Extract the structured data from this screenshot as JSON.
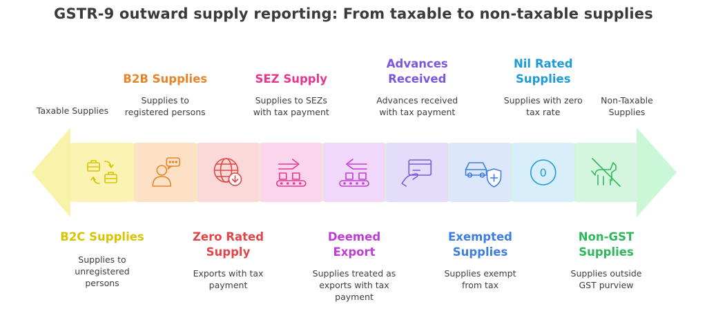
{
  "title": "GSTR-9 outward supply reporting: From taxable to non-taxable supplies",
  "ends": {
    "left": "Taxable Supplies",
    "right_line1": "Non-Taxable",
    "right_line2": "Supplies"
  },
  "top": [
    {
      "heading": [
        "B2B Supplies"
      ],
      "desc": [
        "Supplies to",
        "registered persons"
      ],
      "color": "#e8852a"
    },
    {
      "heading": [
        "SEZ Supply"
      ],
      "desc": [
        "Supplies to SEZs",
        "with tax payment"
      ],
      "color": "#e8368f"
    },
    {
      "heading": [
        "Advances",
        "Received"
      ],
      "desc": [
        "Advances received",
        "with tax payment"
      ],
      "color": "#7b57e0"
    },
    {
      "heading": [
        "Nil Rated",
        "Supplies"
      ],
      "desc": [
        "Supplies with zero",
        "tax rate"
      ],
      "color": "#1e9bd6"
    }
  ],
  "bottom": [
    {
      "heading": [
        "B2C Supplies"
      ],
      "desc": [
        "Supplies to",
        "unregistered",
        "persons"
      ],
      "color": "#d8c400"
    },
    {
      "heading": [
        "Zero Rated",
        "Supply"
      ],
      "desc": [
        "Exports with tax",
        "payment"
      ],
      "color": "#e04646"
    },
    {
      "heading": [
        "Deemed",
        "Export"
      ],
      "desc": [
        "Supplies treated as",
        "exports with tax",
        "payment"
      ],
      "color": "#c03cd6"
    },
    {
      "heading": [
        "Exempted",
        "Supplies"
      ],
      "desc": [
        "Supplies exempt",
        "from tax"
      ],
      "color": "#3d7ee0"
    },
    {
      "heading": [
        "Non-GST",
        "Supplies"
      ],
      "desc": [
        "Supplies outside",
        "GST purview"
      ],
      "color": "#2fb85a"
    }
  ],
  "segments": [
    {
      "name": "b2c",
      "icon": "briefcase-exchange-icon",
      "fill": "#fbf3b4",
      "stroke": "#d8c400"
    },
    {
      "name": "b2b",
      "icon": "person-chat-icon",
      "fill": "#fde0c6",
      "stroke": "#e8852a"
    },
    {
      "name": "zero-rated",
      "icon": "globe-download-icon",
      "fill": "#fcd9d9",
      "stroke": "#e04646"
    },
    {
      "name": "sez",
      "icon": "conveyor-right-icon",
      "fill": "#fbd5ec",
      "stroke": "#e8368f"
    },
    {
      "name": "deemed-export",
      "icon": "conveyor-left-icon",
      "fill": "#f1d8fb",
      "stroke": "#c03cd6"
    },
    {
      "name": "advances",
      "icon": "hand-card-icon",
      "fill": "#e3dcfb",
      "stroke": "#7b57e0"
    },
    {
      "name": "exempted",
      "icon": "car-shield-icon",
      "fill": "#dce7fb",
      "stroke": "#3d7ee0"
    },
    {
      "name": "nil-rated",
      "icon": "zero-circle-icon",
      "fill": "#d8eefb",
      "stroke": "#1e9bd6"
    },
    {
      "name": "non-gst",
      "icon": "no-dog-icon",
      "fill": "#d4f5de",
      "stroke": "#2fb85a"
    }
  ],
  "zero_glyph": "0",
  "arrow": {
    "left_color": "#faf2a8",
    "right_color": "#c9f7d8"
  }
}
